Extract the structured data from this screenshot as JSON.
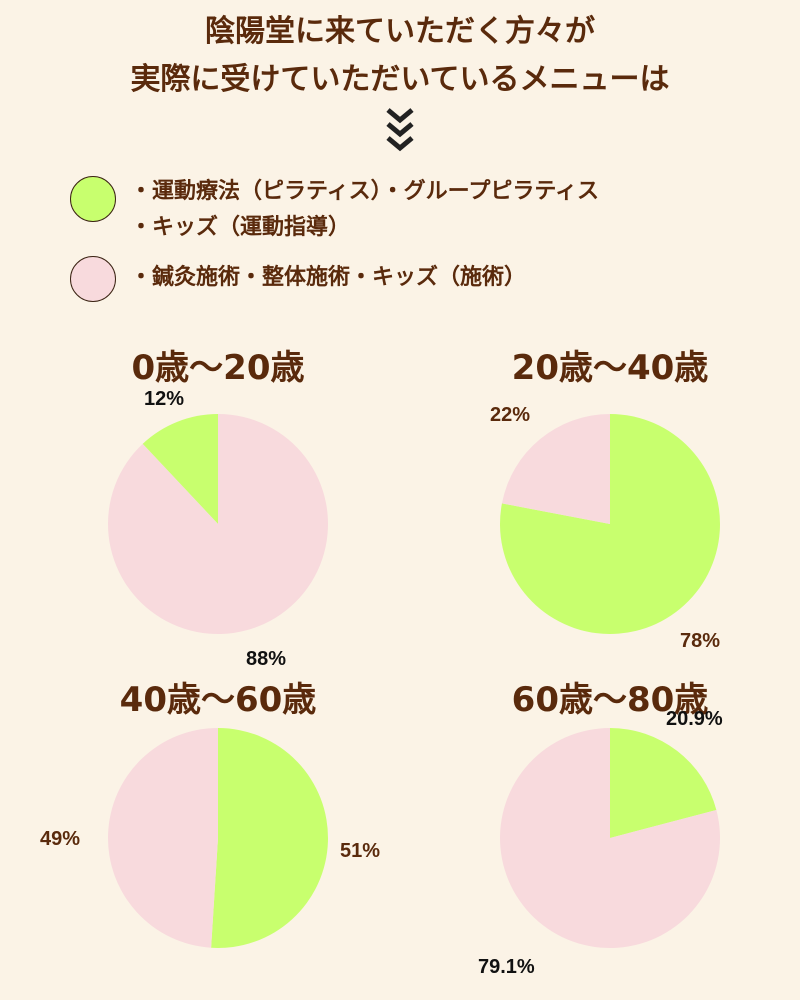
{
  "header": {
    "title_line1": "陰陽堂に来ていただく方々が",
    "title_line2": "実際に受けていただいているメニューは",
    "chevron_icon": "triple-chevron-down-icon"
  },
  "legend": [
    {
      "color": "#c8ff6e",
      "line1": "・運動療法（ピラティス）・グループピラティス",
      "line2": "・キッズ（運動指導）"
    },
    {
      "color": "#f8dadd",
      "line1": "・鍼灸施術・整体施術・キッズ（施術）"
    }
  ],
  "colors": {
    "green": "#c8ff6e",
    "pink": "#f8dadd",
    "label_brown": "#5a2a0c",
    "label_black": "#111111"
  },
  "chart_data": [
    {
      "type": "pie",
      "title": "0歳〜20歳",
      "series": [
        {
          "values": [
            12,
            88
          ],
          "labels": [
            "12%",
            "88%"
          ],
          "colors": [
            "#c8ff6e",
            "#f8dadd"
          ]
        }
      ]
    },
    {
      "type": "pie",
      "title": "20歳〜40歳",
      "series": [
        {
          "values": [
            78,
            22
          ],
          "labels": [
            "78%",
            "22%"
          ],
          "colors": [
            "#c8ff6e",
            "#f8dadd"
          ]
        }
      ]
    },
    {
      "type": "pie",
      "title": "40歳〜60歳",
      "series": [
        {
          "values": [
            51,
            49
          ],
          "labels": [
            "51%",
            "49%"
          ],
          "colors": [
            "#c8ff6e",
            "#f8dadd"
          ]
        }
      ]
    },
    {
      "type": "pie",
      "title": "60歳〜80歳",
      "series": [
        {
          "values": [
            20.9,
            79.1
          ],
          "labels": [
            "20.9%",
            "79.1%"
          ],
          "colors": [
            "#c8ff6e",
            "#f8dadd"
          ]
        }
      ]
    }
  ]
}
